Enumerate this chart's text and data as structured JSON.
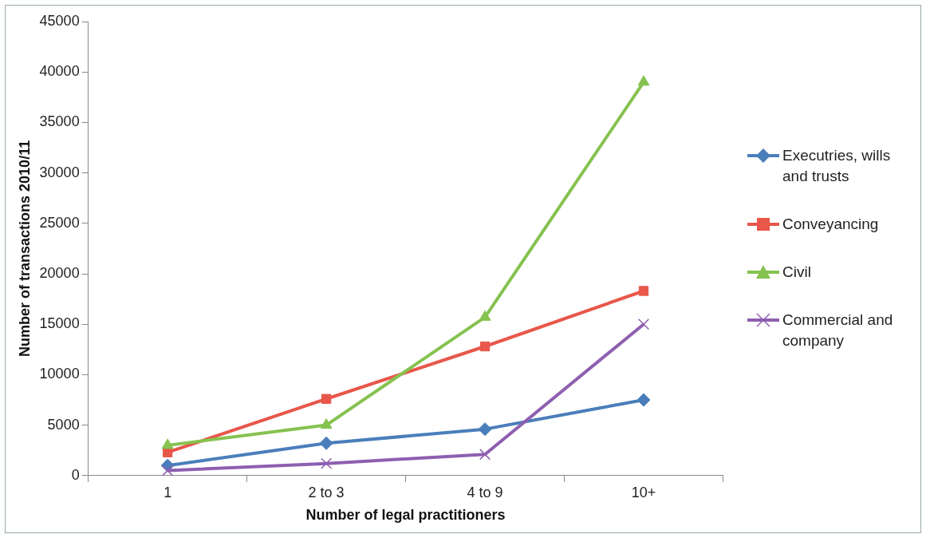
{
  "chart_data": {
    "type": "line",
    "xlabel": "Number of legal practitioners",
    "ylabel": "Number of transactions 2010/11",
    "categories": [
      "1",
      "2 to 3",
      "4 to 9",
      "10+"
    ],
    "series": [
      {
        "name": "Executries, wills and trusts",
        "color": "#4a7ebb",
        "marker": "diamond",
        "values": [
          1000,
          3200,
          4600,
          7500
        ]
      },
      {
        "name": "Conveyancing",
        "color": "#e8574a",
        "marker": "square",
        "values": [
          2300,
          7600,
          12800,
          18300
        ]
      },
      {
        "name": "Civil",
        "color": "#86c250",
        "marker": "triangle",
        "values": [
          3000,
          5000,
          15700,
          39000
        ]
      },
      {
        "name": "Commercial and company",
        "color": "#8e5fb0",
        "marker": "cross",
        "values": [
          500,
          1200,
          2100,
          15000
        ]
      }
    ],
    "ylim": [
      0,
      45000
    ],
    "yticks": [
      0,
      5000,
      10000,
      15000,
      20000,
      25000,
      30000,
      35000,
      40000,
      45000
    ],
    "grid": false,
    "legend": "right",
    "line_style": "solid"
  }
}
